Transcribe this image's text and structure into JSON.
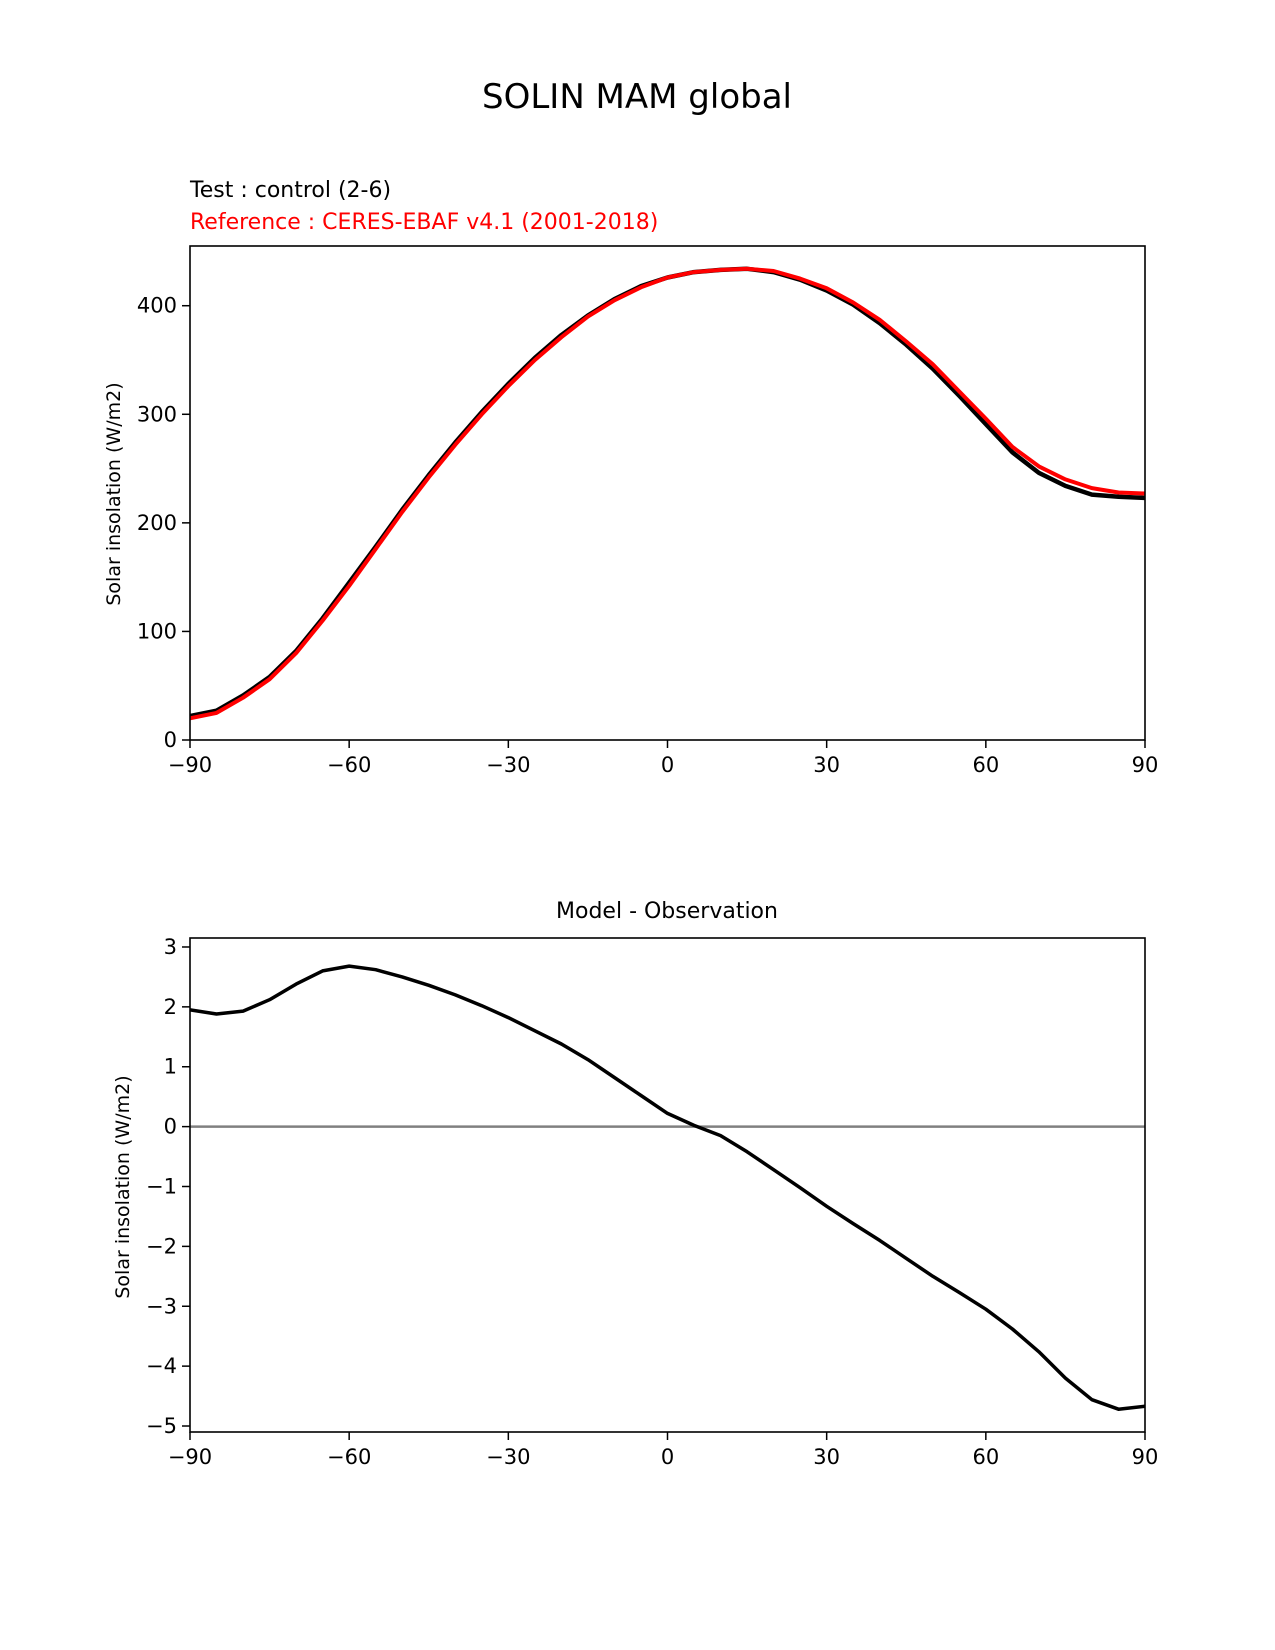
{
  "figure": {
    "title": "SOLIN MAM global"
  },
  "colors": {
    "test": "#000000",
    "reference": "#ff0000",
    "zero_line": "#808080",
    "axes": "#000000"
  },
  "chart_data": [
    {
      "type": "line",
      "title_lines": [
        "Test : control (2-6)",
        "Reference : CERES-EBAF v4.1 (2001-2018)"
      ],
      "xlabel": "",
      "ylabel": "Solar insolation (W/m2)",
      "xlim": [
        -90,
        90
      ],
      "ylim": [
        0,
        455
      ],
      "xticks": [
        -90,
        -60,
        -30,
        0,
        30,
        60,
        90
      ],
      "xtick_labels": [
        "−90",
        "−60",
        "−30",
        "0",
        "30",
        "60",
        "90"
      ],
      "yticks": [
        0,
        100,
        200,
        300,
        400
      ],
      "ytick_labels": [
        "0",
        "100",
        "200",
        "300",
        "400"
      ],
      "grid": false,
      "x": [
        -90,
        -85,
        -80,
        -75,
        -70,
        -65,
        -60,
        -55,
        -50,
        -45,
        -40,
        -35,
        -30,
        -25,
        -20,
        -15,
        -10,
        -5,
        0,
        5,
        10,
        15,
        20,
        25,
        30,
        35,
        40,
        45,
        50,
        55,
        60,
        65,
        70,
        75,
        80,
        85,
        90
      ],
      "series": [
        {
          "values": [
            22,
            27,
            41,
            58,
            82,
            112,
            145,
            178,
            212,
            244,
            274,
            302,
            328,
            352,
            373,
            391,
            406,
            418,
            426,
            431,
            433,
            434,
            431,
            424,
            414,
            401,
            384,
            364,
            342,
            317,
            291,
            265,
            246,
            234,
            226,
            224,
            223
          ]
        },
        {
          "values": [
            20,
            25,
            39,
            56,
            80,
            110,
            142,
            176,
            210,
            242,
            272,
            300,
            326,
            350,
            371,
            390,
            405,
            417,
            426,
            431,
            433,
            434,
            432,
            425,
            416,
            403,
            387,
            367,
            346,
            321,
            296,
            270,
            252,
            240,
            232,
            228,
            227
          ]
        }
      ]
    },
    {
      "type": "line",
      "title": "Model - Observation",
      "xlabel": "",
      "ylabel": "Solar insolation (W/m2)",
      "xlim": [
        -90,
        90
      ],
      "ylim": [
        -5.1,
        3.15
      ],
      "xticks": [
        -90,
        -60,
        -30,
        0,
        30,
        60,
        90
      ],
      "xtick_labels": [
        "−90",
        "−60",
        "−30",
        "0",
        "30",
        "60",
        "90"
      ],
      "yticks": [
        -5,
        -4,
        -3,
        -2,
        -1,
        0,
        1,
        2,
        3
      ],
      "ytick_labels": [
        "−5",
        "−4",
        "−3",
        "−2",
        "−1",
        "0",
        "1",
        "2",
        "3"
      ],
      "grid": false,
      "zero_line": 0,
      "x": [
        -90,
        -85,
        -80,
        -75,
        -70,
        -65,
        -60,
        -55,
        -50,
        -45,
        -40,
        -35,
        -30,
        -25,
        -20,
        -15,
        -10,
        -5,
        0,
        5,
        10,
        15,
        20,
        25,
        30,
        35,
        40,
        45,
        50,
        55,
        60,
        65,
        70,
        75,
        80,
        85,
        90
      ],
      "series": [
        {
          "values": [
            1.95,
            1.88,
            1.93,
            2.12,
            2.38,
            2.6,
            2.68,
            2.62,
            2.5,
            2.36,
            2.2,
            2.02,
            1.82,
            1.6,
            1.38,
            1.12,
            0.82,
            0.52,
            0.22,
            0.02,
            -0.15,
            -0.42,
            -0.72,
            -1.02,
            -1.33,
            -1.62,
            -1.9,
            -2.2,
            -2.5,
            -2.77,
            -3.05,
            -3.38,
            -3.76,
            -4.2,
            -4.56,
            -4.72,
            -4.67
          ]
        }
      ]
    }
  ]
}
